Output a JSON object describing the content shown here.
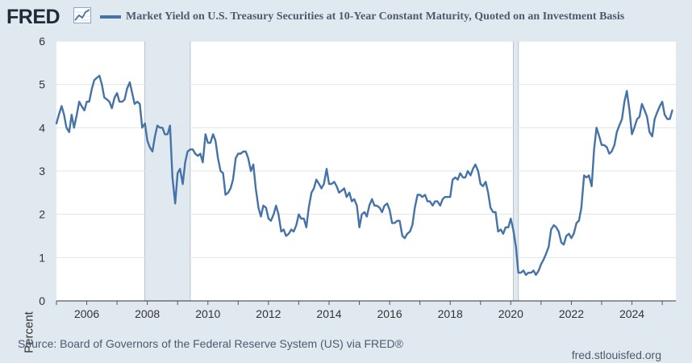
{
  "header": {
    "logo_text": "FRED",
    "logo_icon": "line-graph-icon"
  },
  "footer": {
    "source": "Source: Board of Governors of the Federal Reserve System (US) via FRED®",
    "site": "fred.stlouisfed.org"
  },
  "colors": {
    "series": "#4572a7",
    "plot_bg": "#ffffff",
    "page_bg": "#e1e9f0",
    "recession": "#e1e9f0",
    "grid": "#dfe5ea"
  },
  "chart_data": {
    "type": "line",
    "title": "Market Yield on U.S. Treasury Securities at 10-Year Constant Maturity, Quoted on an Investment Basis",
    "xlabel": "",
    "ylabel": "Percent",
    "xlim": [
      2005.0,
      2025.45
    ],
    "ylim": [
      0,
      6
    ],
    "yticks": [
      0,
      1,
      2,
      3,
      4,
      5,
      6
    ],
    "xticks": [
      2006,
      2008,
      2010,
      2012,
      2014,
      2016,
      2018,
      2020,
      2022,
      2024
    ],
    "grid": true,
    "legend": "top",
    "recessions": [
      [
        2007.917,
        2009.417
      ],
      [
        2020.083,
        2020.25
      ]
    ],
    "series": [
      {
        "name": "Market Yield on U.S. Treasury Securities at 10-Year Constant Maturity, Quoted on an Investment Basis",
        "x": [
          2005.0,
          2005.08,
          2005.17,
          2005.25,
          2005.33,
          2005.42,
          2005.5,
          2005.58,
          2005.67,
          2005.75,
          2005.83,
          2005.92,
          2006.0,
          2006.08,
          2006.17,
          2006.25,
          2006.33,
          2006.42,
          2006.5,
          2006.58,
          2006.67,
          2006.75,
          2006.83,
          2006.92,
          2007.0,
          2007.08,
          2007.17,
          2007.25,
          2007.33,
          2007.42,
          2007.5,
          2007.58,
          2007.67,
          2007.75,
          2007.83,
          2007.92,
          2008.0,
          2008.08,
          2008.17,
          2008.25,
          2008.33,
          2008.42,
          2008.5,
          2008.58,
          2008.67,
          2008.75,
          2008.83,
          2008.92,
          2009.0,
          2009.08,
          2009.17,
          2009.25,
          2009.33,
          2009.42,
          2009.5,
          2009.58,
          2009.67,
          2009.75,
          2009.83,
          2009.92,
          2010.0,
          2010.08,
          2010.17,
          2010.25,
          2010.33,
          2010.42,
          2010.5,
          2010.58,
          2010.67,
          2010.75,
          2010.83,
          2010.92,
          2011.0,
          2011.08,
          2011.17,
          2011.25,
          2011.33,
          2011.42,
          2011.5,
          2011.58,
          2011.67,
          2011.75,
          2011.83,
          2011.92,
          2012.0,
          2012.08,
          2012.17,
          2012.25,
          2012.33,
          2012.42,
          2012.5,
          2012.58,
          2012.67,
          2012.75,
          2012.83,
          2012.92,
          2013.0,
          2013.08,
          2013.17,
          2013.25,
          2013.33,
          2013.42,
          2013.5,
          2013.58,
          2013.67,
          2013.75,
          2013.83,
          2013.92,
          2014.0,
          2014.08,
          2014.17,
          2014.25,
          2014.33,
          2014.42,
          2014.5,
          2014.58,
          2014.67,
          2014.75,
          2014.83,
          2014.92,
          2015.0,
          2015.08,
          2015.17,
          2015.25,
          2015.33,
          2015.42,
          2015.5,
          2015.58,
          2015.67,
          2015.75,
          2015.83,
          2015.92,
          2016.0,
          2016.08,
          2016.17,
          2016.25,
          2016.33,
          2016.42,
          2016.5,
          2016.58,
          2016.67,
          2016.75,
          2016.83,
          2016.92,
          2017.0,
          2017.08,
          2017.17,
          2017.25,
          2017.33,
          2017.42,
          2017.5,
          2017.58,
          2017.67,
          2017.75,
          2017.83,
          2017.92,
          2018.0,
          2018.08,
          2018.17,
          2018.25,
          2018.33,
          2018.42,
          2018.5,
          2018.58,
          2018.67,
          2018.75,
          2018.83,
          2018.92,
          2019.0,
          2019.08,
          2019.17,
          2019.25,
          2019.33,
          2019.42,
          2019.5,
          2019.58,
          2019.67,
          2019.75,
          2019.83,
          2019.92,
          2020.0,
          2020.08,
          2020.17,
          2020.25,
          2020.33,
          2020.42,
          2020.5,
          2020.58,
          2020.67,
          2020.75,
          2020.83,
          2020.92,
          2021.0,
          2021.08,
          2021.17,
          2021.25,
          2021.33,
          2021.42,
          2021.5,
          2021.58,
          2021.67,
          2021.75,
          2021.83,
          2021.92,
          2022.0,
          2022.08,
          2022.17,
          2022.25,
          2022.33,
          2022.42,
          2022.5,
          2022.58,
          2022.67,
          2022.75,
          2022.83,
          2022.92,
          2023.0,
          2023.08,
          2023.17,
          2023.25,
          2023.33,
          2023.42,
          2023.5,
          2023.58,
          2023.67,
          2023.75,
          2023.83,
          2023.92,
          2024.0,
          2024.08,
          2024.17,
          2024.25,
          2024.33,
          2024.42,
          2024.5,
          2024.58,
          2024.67,
          2024.75,
          2024.83,
          2024.92,
          2025.0,
          2025.08,
          2025.17,
          2025.25,
          2025.33
        ],
        "values": [
          4.1,
          4.3,
          4.5,
          4.3,
          4.0,
          3.9,
          4.3,
          4.0,
          4.3,
          4.6,
          4.5,
          4.4,
          4.6,
          4.6,
          4.9,
          5.1,
          5.15,
          5.2,
          5.0,
          4.7,
          4.65,
          4.6,
          4.45,
          4.7,
          4.8,
          4.6,
          4.6,
          4.65,
          4.9,
          5.05,
          4.8,
          4.55,
          4.6,
          4.55,
          4.0,
          4.1,
          3.7,
          3.55,
          3.45,
          3.8,
          4.05,
          4.0,
          4.0,
          3.85,
          3.85,
          4.05,
          2.85,
          2.25,
          2.95,
          3.05,
          2.7,
          3.2,
          3.45,
          3.5,
          3.5,
          3.4,
          3.35,
          3.4,
          3.2,
          3.85,
          3.65,
          3.65,
          3.85,
          3.7,
          3.3,
          3.0,
          2.95,
          2.45,
          2.5,
          2.6,
          2.8,
          3.3,
          3.4,
          3.4,
          3.45,
          3.45,
          3.3,
          3.0,
          3.15,
          2.6,
          2.15,
          1.95,
          2.2,
          2.15,
          1.9,
          1.85,
          2.0,
          2.2,
          2.0,
          1.6,
          1.65,
          1.5,
          1.55,
          1.65,
          1.6,
          1.75,
          2.0,
          1.9,
          1.9,
          1.7,
          2.15,
          2.5,
          2.6,
          2.8,
          2.7,
          2.6,
          2.7,
          3.05,
          2.7,
          2.7,
          2.75,
          2.65,
          2.5,
          2.55,
          2.6,
          2.4,
          2.5,
          2.3,
          2.35,
          2.2,
          1.7,
          2.0,
          2.05,
          1.95,
          2.2,
          2.35,
          2.2,
          2.2,
          2.15,
          2.05,
          2.2,
          2.25,
          2.1,
          1.8,
          1.8,
          1.85,
          1.85,
          1.5,
          1.45,
          1.55,
          1.6,
          1.75,
          2.15,
          2.45,
          2.45,
          2.4,
          2.45,
          2.3,
          2.3,
          2.2,
          2.3,
          2.3,
          2.2,
          2.35,
          2.4,
          2.4,
          2.4,
          2.8,
          2.85,
          2.8,
          2.95,
          2.85,
          2.85,
          3.0,
          2.9,
          3.05,
          3.15,
          3.0,
          2.7,
          2.65,
          2.75,
          2.5,
          2.15,
          2.05,
          2.05,
          1.6,
          1.65,
          1.55,
          1.7,
          1.7,
          1.9,
          1.65,
          1.25,
          0.65,
          0.65,
          0.7,
          0.6,
          0.65,
          0.65,
          0.7,
          0.6,
          0.7,
          0.85,
          0.95,
          1.1,
          1.25,
          1.65,
          1.75,
          1.7,
          1.6,
          1.35,
          1.3,
          1.5,
          1.55,
          1.45,
          1.55,
          1.8,
          1.85,
          2.15,
          2.9,
          2.85,
          2.9,
          2.65,
          3.5,
          4.0,
          3.8,
          3.6,
          3.6,
          3.55,
          3.4,
          3.45,
          3.6,
          3.9,
          4.05,
          4.2,
          4.6,
          4.85,
          4.4,
          3.85,
          4.0,
          4.2,
          4.25,
          4.55,
          4.4,
          4.25,
          3.9,
          3.8,
          4.2,
          4.35,
          4.5,
          4.6,
          4.3,
          4.2,
          4.2,
          4.4
        ]
      }
    ]
  }
}
